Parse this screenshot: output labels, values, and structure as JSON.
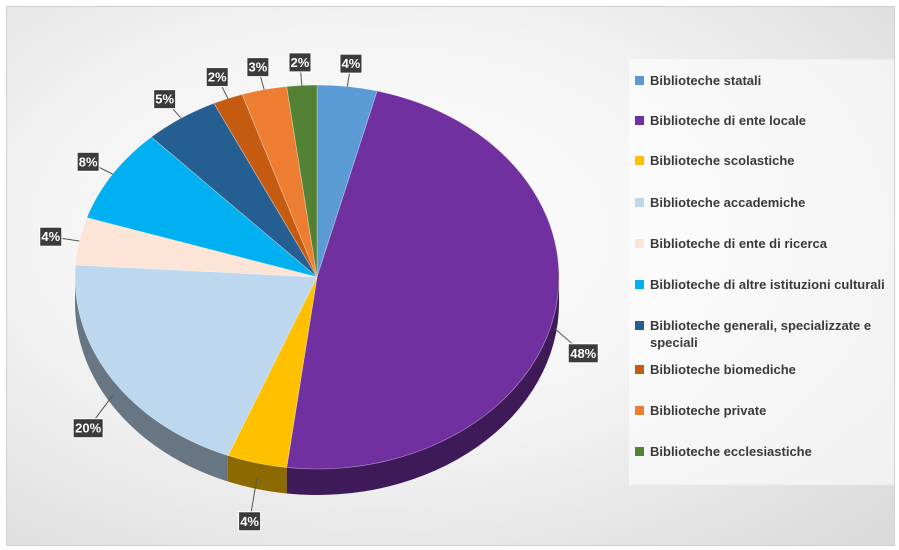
{
  "chart_data": {
    "type": "pie",
    "title": "",
    "slices": [
      {
        "label": "Biblioteche statali",
        "value": 4,
        "value_label": "4%",
        "color": "#5b9bd5"
      },
      {
        "label": "Biblioteche di ente locale",
        "value": 48,
        "value_label": "48%",
        "color": "#7030a0"
      },
      {
        "label": "Biblioteche scolastiche",
        "value": 4,
        "value_label": "4%",
        "color": "#ffc000"
      },
      {
        "label": "Biblioteche accademiche",
        "value": 20,
        "value_label": "20%",
        "color": "#bdd7ee"
      },
      {
        "label": "Biblioteche di ente di ricerca",
        "value": 4,
        "value_label": "4%",
        "color": "#fce4d6"
      },
      {
        "label": "Biblioteche di altre istituzioni culturali",
        "value": 8,
        "value_label": "8%",
        "color": "#00b0f0"
      },
      {
        "label": "Biblioteche generali, specializzate e speciali",
        "value": 5,
        "value_label": "5%",
        "color": "#255e91"
      },
      {
        "label": "Biblioteche biomediche",
        "value": 2,
        "value_label": "2%",
        "color": "#c55a11"
      },
      {
        "label": "Biblioteche private",
        "value": 3,
        "value_label": "3%",
        "color": "#ed7d31"
      },
      {
        "label": "Biblioteche ecclesiastiche",
        "value": 2,
        "value_label": "2%",
        "color": "#548235"
      }
    ],
    "legend_position": "right",
    "style": "3d-pie"
  }
}
